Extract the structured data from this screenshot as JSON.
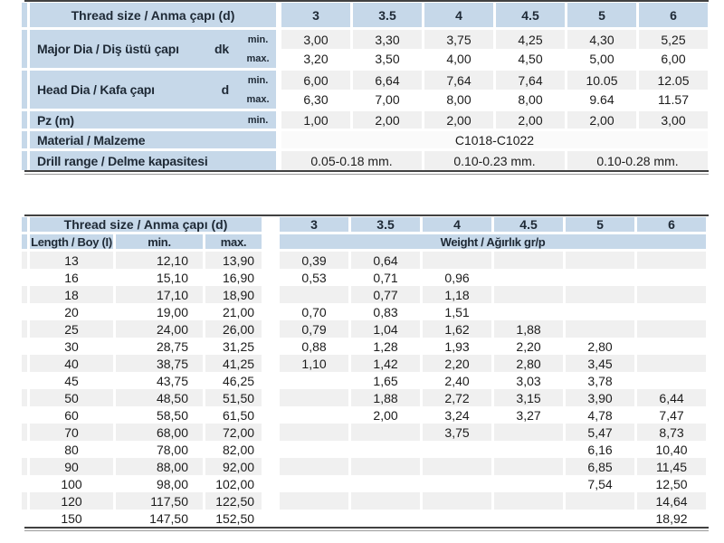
{
  "colors": {
    "header_blue": "#c6d8e9",
    "stripe_gray": "#f0f0f0",
    "row_white": "#ffffff",
    "rule_dark": "#414141",
    "rule_light": "#9a9a9a",
    "text": "#1c1c1c",
    "header_text": "#1e2935"
  },
  "table1": {
    "header": {
      "label": "Thread size / Anma çapı (d)",
      "sizes": [
        "3",
        "3.5",
        "4",
        "4.5",
        "5",
        "6"
      ]
    },
    "major": {
      "label": "Major Dia / Diş üstü çapı",
      "symbol": "dk",
      "min_label": "min.",
      "max_label": "max.",
      "min_values": [
        "3,00",
        "3,30",
        "3,75",
        "4,25",
        "4,30",
        "5,25"
      ],
      "max_values": [
        "3,20",
        "3,50",
        "4,00",
        "4,50",
        "5,00",
        "6,00"
      ]
    },
    "head": {
      "label": "Head Dia / Kafa çapı",
      "symbol": "d",
      "min_label": "min.",
      "max_label": "max.",
      "min_values": [
        "6,00",
        "6,64",
        "7,64",
        "7,64",
        "10.05",
        "12.05"
      ],
      "max_values": [
        "6,30",
        "7,00",
        "8,00",
        "8,00",
        "9.64",
        "11.57"
      ]
    },
    "pz": {
      "label": "Pz (m)",
      "min_label": "min.",
      "values": [
        "1,00",
        "2,00",
        "2,00",
        "2,00",
        "2,00",
        "3,00"
      ]
    },
    "material": {
      "label": "Material / Malzeme",
      "value": "C1018-C1022"
    },
    "drill": {
      "label": "Drill range / Delme kapasitesi",
      "values": [
        "0.05-0.18 mm.",
        "0.10-0.23 mm.",
        "0.10-0.28 mm."
      ]
    }
  },
  "table2": {
    "header": {
      "label": "Thread size / Anma çapı (d)",
      "sizes": [
        "3",
        "3.5",
        "4",
        "4.5",
        "5",
        "6"
      ]
    },
    "subheader": {
      "length": "Length / Boy (I)",
      "min": "min.",
      "max": "max.",
      "weight": "Weight / Ağırlık gr/p"
    },
    "rows": [
      {
        "length": "13",
        "min": "12,10",
        "max": "13,90",
        "weights": [
          "0,39",
          "0,64",
          "",
          "",
          "",
          ""
        ]
      },
      {
        "length": "16",
        "min": "15,10",
        "max": "16,90",
        "weights": [
          "0,53",
          "0,71",
          "0,96",
          "",
          "",
          ""
        ]
      },
      {
        "length": "18",
        "min": "17,10",
        "max": "18,90",
        "weights": [
          "",
          "0,77",
          "1,18",
          "",
          "",
          ""
        ]
      },
      {
        "length": "20",
        "min": "19,00",
        "max": "21,00",
        "weights": [
          "0,70",
          "0,83",
          "1,51",
          "",
          "",
          ""
        ]
      },
      {
        "length": "25",
        "min": "24,00",
        "max": "26,00",
        "weights": [
          "0,79",
          "1,04",
          "1,62",
          "1,88",
          "",
          ""
        ]
      },
      {
        "length": "30",
        "min": "28,75",
        "max": "31,25",
        "weights": [
          "0,88",
          "1,28",
          "1,93",
          "2,20",
          "2,80",
          ""
        ]
      },
      {
        "length": "40",
        "min": "38,75",
        "max": "41,25",
        "weights": [
          "1,10",
          "1,42",
          "2,20",
          "2,80",
          "3,45",
          ""
        ]
      },
      {
        "length": "45",
        "min": "43,75",
        "max": "46,25",
        "weights": [
          "",
          "1,65",
          "2,40",
          "3,03",
          "3,78",
          ""
        ]
      },
      {
        "length": "50",
        "min": "48,50",
        "max": "51,50",
        "weights": [
          "",
          "1,88",
          "2,72",
          "3,15",
          "3,90",
          "6,44"
        ]
      },
      {
        "length": "60",
        "min": "58,50",
        "max": "61,50",
        "weights": [
          "",
          "2,00",
          "3,24",
          "3,27",
          "4,78",
          "7,47"
        ]
      },
      {
        "length": "70",
        "min": "68,00",
        "max": "72,00",
        "weights": [
          "",
          "",
          "3,75",
          "",
          "5,47",
          "8,73"
        ]
      },
      {
        "length": "80",
        "min": "78,00",
        "max": "82,00",
        "weights": [
          "",
          "",
          "",
          "",
          "6,16",
          "10,40"
        ]
      },
      {
        "length": "90",
        "min": "88,00",
        "max": "92,00",
        "weights": [
          "",
          "",
          "",
          "",
          "6,85",
          "11,45"
        ]
      },
      {
        "length": "100",
        "min": "98,00",
        "max": "102,00",
        "weights": [
          "",
          "",
          "",
          "",
          "7,54",
          "12,50"
        ]
      },
      {
        "length": "120",
        "min": "117,50",
        "max": "122,50",
        "weights": [
          "",
          "",
          "",
          "",
          "",
          "14,64"
        ]
      },
      {
        "length": "150",
        "min": "147,50",
        "max": "152,50",
        "weights": [
          "",
          "",
          "",
          "",
          "",
          "18,92"
        ]
      }
    ]
  }
}
